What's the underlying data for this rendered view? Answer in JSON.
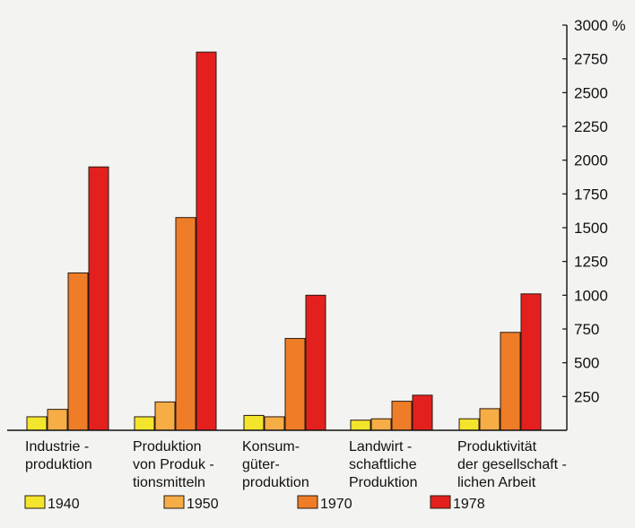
{
  "chart_data": {
    "type": "bar",
    "title": "",
    "xlabel": "",
    "ylabel": "",
    "ylim": [
      0,
      3000
    ],
    "y_unit": "%",
    "y_ticks": [
      250,
      500,
      750,
      1000,
      1250,
      1500,
      1750,
      2000,
      2250,
      2500,
      2750,
      3000
    ],
    "y_tick_labels": [
      "250",
      "500",
      "750",
      "1000",
      "1250",
      "1500",
      "1750",
      "2000",
      "2250",
      "2500",
      "2750",
      "3000 %"
    ],
    "y_axis_side": "right",
    "grid": false,
    "legend_position": "bottom",
    "categories": [
      [
        "Industrie -",
        "produktion"
      ],
      [
        "Produktion",
        "von Produk -",
        "tionsmitteln"
      ],
      [
        "Konsum-",
        "güter-",
        "produktion"
      ],
      [
        "Landwirt -",
        "schaftliche",
        "Produktion"
      ],
      [
        "Produktivität",
        "der gesellschaft -",
        "lichen Arbeit"
      ]
    ],
    "series": [
      {
        "name": "1940",
        "color": "#f3e52c",
        "values": [
          100,
          100,
          110,
          75,
          85
        ]
      },
      {
        "name": "1950",
        "color": "#f6ad46",
        "values": [
          155,
          210,
          100,
          85,
          160
        ]
      },
      {
        "name": "1970",
        "color": "#ef7d27",
        "values": [
          1165,
          1575,
          680,
          215,
          725
        ]
      },
      {
        "name": "1978",
        "color": "#e4201f",
        "values": [
          1950,
          2800,
          1000,
          260,
          1010
        ]
      }
    ]
  }
}
